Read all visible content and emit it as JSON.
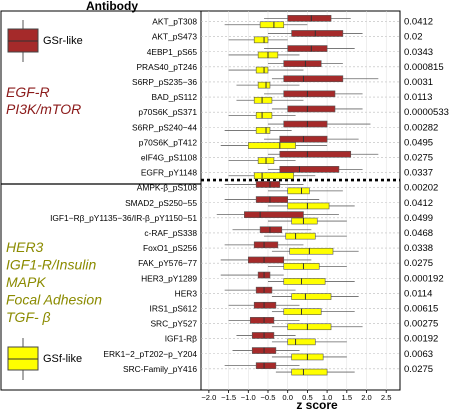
{
  "chart_data": {
    "type": "boxplot",
    "title": "Antibody",
    "xlabel": "z score",
    "xlim": [
      -2.2,
      2.85
    ],
    "xticks": [
      "−2.0",
      "−1.5",
      "−1.0",
      "−0.5",
      "0.0",
      "0.5",
      "1.0",
      "1.5",
      "2.0",
      "2.5"
    ],
    "xtick_values": [
      -2.0,
      -1.5,
      -1.0,
      -0.5,
      0.0,
      0.5,
      1.0,
      1.5,
      2.0,
      2.5
    ],
    "series": [
      {
        "name": "GSr-like",
        "color": "#a52a2a"
      },
      {
        "name": "GSf-like",
        "color": "#ffff00"
      }
    ],
    "legend_top_label": "GSr-like",
    "legend_bottom_label": "GSf-like",
    "group_labels": [
      {
        "lines": [
          "EGF-R",
          "PI3K/mTOR"
        ],
        "color": "#8b1a1a"
      },
      {
        "lines": [
          "HER3",
          "IGF1-R/Insulin",
          "MAPK",
          "Focal Adhesion",
          "TGF- β"
        ],
        "color": "#8b8b00"
      }
    ],
    "rows": [
      {
        "label": "AKT_pT308",
        "pvalue": "0.0412",
        "gsr": [
          -0.6,
          0.0,
          0.6,
          1.1,
          1.6
        ],
        "gsf": [
          -1.6,
          -0.7,
          -0.35,
          -0.1,
          0.5
        ]
      },
      {
        "label": "AKT_pS473",
        "pvalue": "0.02",
        "gsr": [
          -0.5,
          0.1,
          0.7,
          1.4,
          1.9
        ],
        "gsf": [
          -1.5,
          -0.85,
          -0.6,
          -0.5,
          0.0
        ]
      },
      {
        "label": "4EBP1_pS65",
        "pvalue": "0.0343",
        "gsr": [
          -0.6,
          0.0,
          0.6,
          1.0,
          1.7
        ],
        "gsf": [
          -1.5,
          -0.75,
          -0.5,
          -0.25,
          0.3
        ]
      },
      {
        "label": "PRAS40_pT246",
        "pvalue": "0.000815",
        "gsr": [
          -0.5,
          -0.1,
          0.45,
          0.85,
          1.4
        ],
        "gsf": [
          -1.5,
          -0.8,
          -0.6,
          -0.5,
          0.4
        ]
      },
      {
        "label": "S6RP_pS235−36",
        "pvalue": "0.0031",
        "gsr": [
          -0.4,
          -0.1,
          0.4,
          1.4,
          2.3
        ],
        "gsf": [
          -1.3,
          -0.75,
          -0.55,
          -0.45,
          0.3
        ]
      },
      {
        "label": "BAD_pS112",
        "pvalue": "0.0113",
        "gsr": [
          -0.6,
          -0.1,
          0.5,
          1.2,
          1.9
        ],
        "gsf": [
          -1.3,
          -0.85,
          -0.65,
          -0.4,
          0.4
        ]
      },
      {
        "label": "p70S6K_pS371",
        "pvalue": "0.0000533",
        "gsr": [
          -0.4,
          0.0,
          0.5,
          1.2,
          1.9
        ],
        "gsf": [
          -1.5,
          -0.8,
          -0.65,
          -0.4,
          0.2
        ]
      },
      {
        "label": "S6RP_pS240−44",
        "pvalue": "0.00282",
        "gsr": [
          -0.5,
          -0.1,
          0.5,
          1.0,
          2.1
        ],
        "gsf": [
          -1.6,
          -0.8,
          -0.55,
          -0.45,
          0.1
        ]
      },
      {
        "label": "p70S6K_pT412",
        "pvalue": "0.0495",
        "gsr": [
          -0.6,
          -0.2,
          0.4,
          1.0,
          1.8
        ],
        "gsf": [
          -1.7,
          -1.0,
          -0.2,
          0.2,
          1.0
        ]
      },
      {
        "label": "eIF4G_pS1108",
        "pvalue": "0.0275",
        "gsr": [
          -0.5,
          -0.2,
          0.5,
          1.6,
          2.3
        ],
        "gsf": [
          -1.5,
          -0.75,
          -0.55,
          -0.35,
          0.2
        ]
      },
      {
        "label": "EGFR_pY1148",
        "pvalue": "0.0337",
        "gsr": [
          -0.5,
          -0.2,
          0.3,
          1.3,
          1.9
        ],
        "gsf": [
          -1.5,
          -0.85,
          -0.65,
          0.15,
          0.7
        ]
      },
      {
        "label": "AMPK-β_pS108",
        "pvalue": "0.00202",
        "gsr": [
          -1.6,
          -0.8,
          -0.45,
          -0.2,
          0.4
        ],
        "gsf": [
          -0.5,
          0.0,
          0.35,
          0.55,
          1.4
        ]
      },
      {
        "label": "SMAD2_pS250−55",
        "pvalue": "0.0412",
        "gsr": [
          -1.6,
          -0.8,
          -0.45,
          0.0,
          0.8
        ],
        "gsf": [
          -0.5,
          0.0,
          0.5,
          1.05,
          1.7
        ]
      },
      {
        "label": "IGF1−Rβ_pY1135−36/IR-β_pY1150−51",
        "pvalue": "0.0499",
        "gsr": [
          -1.8,
          -1.1,
          -0.7,
          0.4,
          1.3
        ],
        "gsf": [
          -0.5,
          0.1,
          0.4,
          0.75,
          1.5
        ]
      },
      {
        "label": "c-RAF_pS338",
        "pvalue": "0.0468",
        "gsr": [
          -1.4,
          -0.7,
          -0.45,
          -0.15,
          0.6
        ],
        "gsf": [
          -0.6,
          -0.05,
          0.2,
          0.7,
          1.5
        ]
      },
      {
        "label": "FoxO1_pS256",
        "pvalue": "0.0338",
        "gsr": [
          -1.6,
          -0.85,
          -0.6,
          -0.25,
          0.4
        ],
        "gsf": [
          -0.4,
          0.05,
          0.55,
          1.15,
          1.8
        ]
      },
      {
        "label": "FAK_pY576−77",
        "pvalue": "0.0275",
        "gsr": [
          -1.7,
          -1.0,
          -0.6,
          -0.1,
          0.6
        ],
        "gsf": [
          -0.5,
          -0.1,
          0.4,
          0.8,
          1.5
        ]
      },
      {
        "label": "HER3_pY1289",
        "pvalue": "0.000192",
        "gsr": [
          -1.7,
          -0.75,
          -0.6,
          -0.45,
          -0.1
        ],
        "gsf": [
          -0.5,
          -0.1,
          0.35,
          0.95,
          1.7
        ]
      },
      {
        "label": "HER3",
        "pvalue": "0.0114",
        "gsr": [
          -1.6,
          -0.8,
          -0.6,
          -0.4,
          0.2
        ],
        "gsf": [
          -0.4,
          0.1,
          0.45,
          1.1,
          1.8
        ]
      },
      {
        "label": "IRS1_pS612",
        "pvalue": "0.00615",
        "gsr": [
          -1.5,
          -0.85,
          -0.6,
          -0.3,
          0.3
        ],
        "gsf": [
          -0.4,
          -0.1,
          0.35,
          0.85,
          1.7
        ]
      },
      {
        "label": "SRC_pY527",
        "pvalue": "0.00275",
        "gsr": [
          -1.5,
          -0.95,
          -0.6,
          -0.35,
          0.3
        ],
        "gsf": [
          -0.4,
          0.0,
          0.5,
          1.1,
          1.9
        ]
      },
      {
        "label": "IGF1-Rβ",
        "pvalue": "0.00192",
        "gsr": [
          -1.3,
          -0.9,
          -0.6,
          -0.35,
          0.2
        ],
        "gsf": [
          -0.4,
          0.0,
          0.2,
          0.7,
          1.5
        ]
      },
      {
        "label": "ERK1−2_pT202−p_Y204",
        "pvalue": "0.0063",
        "gsr": [
          -1.4,
          -0.9,
          -0.6,
          -0.3,
          0.3
        ],
        "gsf": [
          -0.4,
          0.1,
          0.5,
          0.9,
          1.5
        ]
      },
      {
        "label": "SRC-Family_pY416",
        "pvalue": "0.0275",
        "gsr": [
          -1.6,
          -0.8,
          -0.6,
          -0.3,
          0.3
        ],
        "gsf": [
          -0.3,
          0.1,
          0.4,
          1.0,
          1.7
        ]
      }
    ],
    "divider_after_row": 10,
    "grid": "dashed horizontal",
    "legend": "left"
  }
}
